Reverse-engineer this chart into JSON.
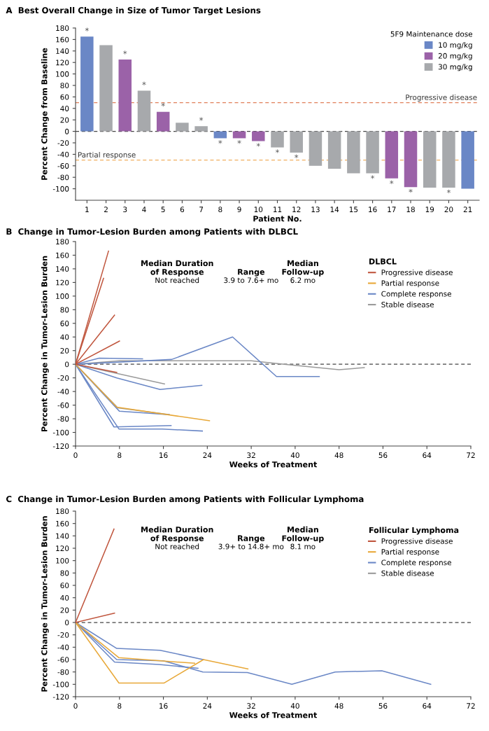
{
  "chart_data": [
    {
      "type": "bar",
      "title": "A  Best Overall Change in Size of Tumor Target Lesions",
      "xlabel": "Patient No.",
      "ylabel": "Percent Change from Baseline",
      "legend_title": "5F9 Maintenance dose",
      "legend": "top right",
      "categories": [
        "1",
        "2",
        "3",
        "4",
        "5",
        "6",
        "7",
        "8",
        "9",
        "10",
        "11",
        "12",
        "13",
        "14",
        "15",
        "16",
        "17",
        "18",
        "19",
        "20",
        "21"
      ],
      "series": [
        {
          "name": "10 mg/kg",
          "color": "#6a87c6",
          "values": [
            165,
            null,
            null,
            null,
            null,
            null,
            null,
            -12,
            null,
            null,
            null,
            null,
            null,
            null,
            null,
            null,
            null,
            null,
            null,
            null,
            -100
          ]
        },
        {
          "name": "20 mg/kg",
          "color": "#9b62a8",
          "values": [
            null,
            null,
            125,
            null,
            34,
            null,
            null,
            null,
            -12,
            -17,
            null,
            null,
            null,
            null,
            null,
            null,
            -82,
            -97,
            null,
            null,
            null
          ]
        },
        {
          "name": "30 mg/kg",
          "color": "#a7a9ac",
          "values": [
            null,
            150,
            null,
            71,
            null,
            15,
            9,
            null,
            null,
            null,
            -28,
            -37,
            -60,
            -65,
            -73,
            -73,
            null,
            null,
            -98,
            -98,
            null
          ]
        }
      ],
      "ylim": [
        -120,
        180
      ],
      "yticks": [
        -100,
        -80,
        -60,
        -40,
        -20,
        0,
        20,
        40,
        60,
        80,
        100,
        120,
        140,
        160,
        180
      ],
      "ref_lines": [
        {
          "axis": "y",
          "value": 50,
          "label": "Progressive disease",
          "color": "#e0805a",
          "line_style": "dashed"
        },
        {
          "axis": "y",
          "value": 0,
          "color": "#444444",
          "line_style": "dashed"
        },
        {
          "axis": "y",
          "value": -50,
          "label": "Partial response",
          "color": "#f0b060",
          "line_style": "dashed"
        }
      ],
      "annotations": [
        {
          "text": "*",
          "x": "1",
          "y": 165
        },
        {
          "text": "*",
          "x": "3",
          "y": 125
        },
        {
          "text": "*",
          "x": "4",
          "y": 71
        },
        {
          "text": "*",
          "x": "5",
          "y": 34
        },
        {
          "text": "*",
          "x": "7",
          "y": 9
        },
        {
          "text": "*",
          "x": "8",
          "y": -12
        },
        {
          "text": "*",
          "x": "9",
          "y": -12
        },
        {
          "text": "*",
          "x": "10",
          "y": -17
        },
        {
          "text": "*",
          "x": "11",
          "y": -28
        },
        {
          "text": "*",
          "x": "12",
          "y": -37
        },
        {
          "text": "*",
          "x": "16",
          "y": -73
        },
        {
          "text": "*",
          "x": "17",
          "y": -82
        },
        {
          "text": "*",
          "x": "18",
          "y": -97
        },
        {
          "text": "*",
          "x": "20",
          "y": -98
        }
      ]
    },
    {
      "type": "line",
      "title": "B  Change in Tumor-Lesion Burden among Patients with DLBCL",
      "xlabel": "Weeks of Treatment",
      "ylabel": "Percent Change in Tumor-Lesion Burden",
      "legend_title": "DLBCL",
      "legend": "top right",
      "xlim": [
        0,
        72
      ],
      "xticks": [
        0,
        8,
        16,
        24,
        32,
        40,
        48,
        56,
        64,
        72
      ],
      "ylim": [
        -120,
        180
      ],
      "yticks": [
        -120,
        -100,
        -80,
        -60,
        -40,
        -20,
        0,
        20,
        40,
        60,
        80,
        100,
        120,
        140,
        160,
        180
      ],
      "ref_lines": [
        {
          "axis": "y",
          "value": 0,
          "color": "#444444",
          "line_style": "dashed"
        }
      ],
      "annotations": [
        "Median Duration\nof Response",
        "Not reached",
        "Range",
        "3.9 to 7.6+ mo",
        "Median\nFollow-up",
        "6.2 mo"
      ],
      "series": [
        {
          "name": "Progressive disease",
          "color": "#c0563e",
          "x": [
            0,
            6.0
          ],
          "values": [
            0,
            166
          ]
        },
        {
          "color": "#c0563e",
          "x": [
            0,
            5.1
          ],
          "values": [
            0,
            126
          ]
        },
        {
          "color": "#c0563e",
          "x": [
            0,
            7.1
          ],
          "values": [
            0,
            72
          ]
        },
        {
          "color": "#c0563e",
          "x": [
            0,
            8.0
          ],
          "values": [
            0,
            34
          ]
        },
        {
          "color": "#c0563e",
          "x": [
            0,
            7.5
          ],
          "values": [
            0,
            -12
          ]
        },
        {
          "name": "Partial response",
          "color": "#e8a838",
          "x": [
            0,
            7.5,
            24.4
          ],
          "values": [
            0,
            -63,
            -83
          ]
        },
        {
          "name": "Complete response",
          "color": "#6a87c6",
          "x": [
            0,
            17.5,
            28.6,
            36.6,
            44.4
          ],
          "values": [
            0,
            7,
            40,
            -18,
            -18
          ]
        },
        {
          "color": "#6a87c6",
          "x": [
            0,
            4.3,
            12.2
          ],
          "values": [
            0,
            9,
            8
          ]
        },
        {
          "color": "#6a87c6",
          "x": [
            0,
            7.5,
            15.4,
            23.0
          ],
          "values": [
            0,
            -20,
            -37,
            -31
          ]
        },
        {
          "color": "#6a87c6",
          "x": [
            0,
            8.0,
            17.0
          ],
          "values": [
            0,
            -69,
            -74
          ]
        },
        {
          "color": "#6a87c6",
          "x": [
            0,
            7.0,
            17.4
          ],
          "values": [
            0,
            -92,
            -90
          ]
        },
        {
          "color": "#6a87c6",
          "x": [
            0,
            7.9,
            15.8,
            23.1
          ],
          "values": [
            0,
            -95,
            -95,
            -98
          ]
        },
        {
          "name": "Stable disease",
          "color": "#9a9a9a",
          "x": [
            0,
            8,
            32,
            38,
            48,
            52.6
          ],
          "values": [
            0,
            5,
            5,
            0,
            -8,
            -5
          ]
        },
        {
          "color": "#9a9a9a",
          "x": [
            0,
            16.2
          ],
          "values": [
            0,
            -29
          ]
        },
        {
          "color": "#9a9a9a",
          "x": [
            0,
            7.7,
            17.1
          ],
          "values": [
            0,
            -64,
            -74
          ]
        }
      ]
    },
    {
      "type": "line",
      "title": "C  Change in Tumor-Lesion Burden among Patients with Follicular Lymphoma",
      "xlabel": "Weeks of Treatment",
      "ylabel": "Percent Change in Tumor-Lesion Burden",
      "legend_title": "Follicular Lymphoma",
      "legend": "top right",
      "xlim": [
        0,
        72
      ],
      "xticks": [
        0,
        8,
        16,
        24,
        32,
        40,
        48,
        56,
        64,
        72
      ],
      "ylim": [
        -120,
        180
      ],
      "yticks": [
        -120,
        -100,
        -80,
        -60,
        -40,
        -20,
        0,
        20,
        40,
        60,
        80,
        100,
        120,
        140,
        160,
        180
      ],
      "ref_lines": [
        {
          "axis": "y",
          "value": 0,
          "color": "#444444",
          "line_style": "dashed"
        }
      ],
      "annotations": [
        "Median Duration\nof Response",
        "Not reached",
        "Range",
        "3.9+ to 14.8+ mo",
        "Median\nFollow-up",
        "8.1 mo"
      ],
      "series": [
        {
          "name": "Progressive disease",
          "color": "#c0563e",
          "x": [
            0,
            7.0
          ],
          "values": [
            0,
            151
          ]
        },
        {
          "color": "#c0563e",
          "x": [
            0,
            7.1
          ],
          "values": [
            0,
            15
          ]
        },
        {
          "name": "Partial response",
          "color": "#e8a838",
          "x": [
            0,
            7.9,
            21.7
          ],
          "values": [
            0,
            -57,
            -66
          ]
        },
        {
          "color": "#e8a838",
          "x": [
            0,
            7.9,
            16.1,
            23.3,
            31.4
          ],
          "values": [
            0,
            -98,
            -98,
            -60,
            -75
          ]
        },
        {
          "name": "Complete response",
          "color": "#6a87c6",
          "x": [
            0,
            7.5,
            15.4,
            23.3
          ],
          "values": [
            0,
            -42,
            -45,
            -60
          ]
        },
        {
          "color": "#6a87c6",
          "x": [
            0,
            7.5,
            16.0,
            23.2,
            31.3,
            39.4,
            47.3,
            55.8,
            64.7
          ],
          "values": [
            0,
            -60,
            -62,
            -80,
            -81,
            -100,
            -80,
            -78,
            -100
          ]
        },
        {
          "color": "#6a87c6",
          "x": [
            0,
            7.1,
            15.2,
            22.3
          ],
          "values": [
            0,
            -64,
            -68,
            -74
          ]
        },
        {
          "name": "Stable disease",
          "color": "#9a9a9a"
        }
      ]
    }
  ]
}
